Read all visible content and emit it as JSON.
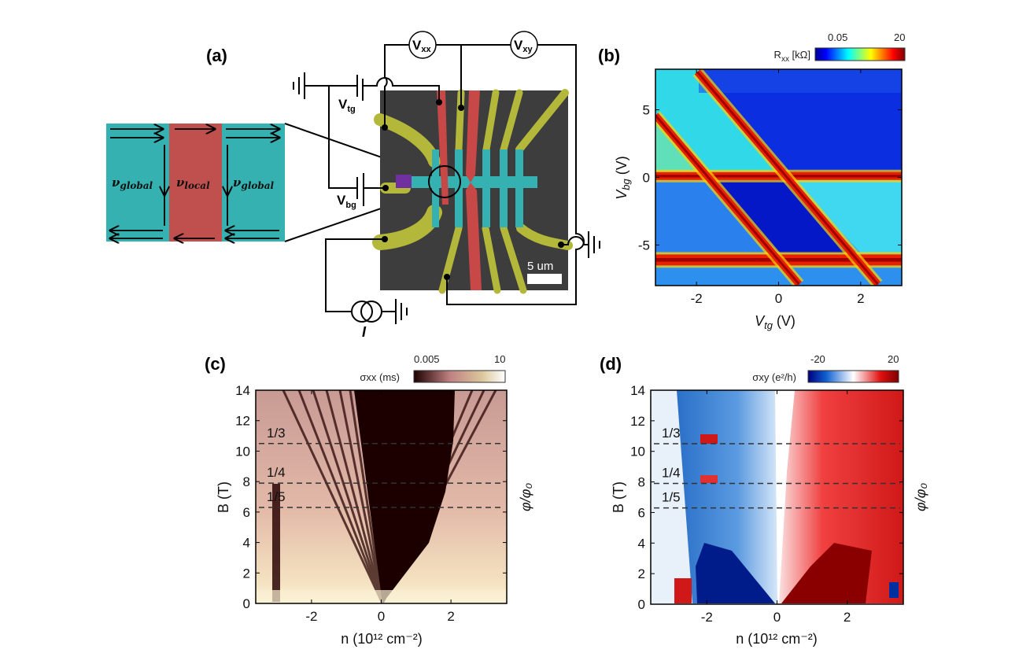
{
  "panel_a": {
    "label": "(a)",
    "edge_states": {
      "left": {
        "symbol": "ν",
        "sub": "global"
      },
      "center": {
        "symbol": "ν",
        "sub": "local"
      },
      "right": {
        "symbol": "ν",
        "sub": "global"
      }
    },
    "meters": [
      {
        "base": "V",
        "sub": "xx"
      },
      {
        "base": "V",
        "sub": "xy"
      }
    ],
    "gates": [
      {
        "base": "V",
        "sub": "tg"
      },
      {
        "base": "V",
        "sub": "bg"
      }
    ],
    "current_label": "I",
    "scale_bar": "5 um",
    "colors": {
      "global_region": "#35b1b1",
      "local_region": "#c0504d",
      "lead": "#b4b83a",
      "substrate": "#3d3d3d",
      "contact": "#7030a0"
    }
  },
  "chart_data": [
    {
      "panel": "(b)",
      "type": "heatmap",
      "xlabel": {
        "var": "V",
        "sub": "tg",
        "unit": " (V)"
      },
      "ylabel": {
        "var": "V",
        "sub": "bg",
        "unit": " (V)"
      },
      "xlim": [
        -3,
        3
      ],
      "ylim": [
        -8,
        8
      ],
      "xticks": [
        -2,
        0,
        2
      ],
      "yticks": [
        5,
        0,
        -5
      ],
      "colorbar": {
        "label_base": "R",
        "label_sub": "xx",
        "label_unit": " [kΩ]",
        "min": "0.05",
        "max": "20",
        "colormap": "jet"
      },
      "peak_lines": [
        {
          "kind": "horizontal",
          "V_bg": 0.1
        },
        {
          "kind": "horizontal",
          "V_bg": -6.1
        },
        {
          "kind": "diagonal",
          "from": [
            -1.98,
            7.8
          ],
          "to": [
            2.42,
            -7.9
          ]
        },
        {
          "kind": "diagonal",
          "from": [
            -3.0,
            4.6
          ],
          "to": [
            0.5,
            -7.9
          ]
        }
      ]
    },
    {
      "panel": "(c)",
      "type": "heatmap",
      "xlabel": "n (10¹² cm⁻²)",
      "ylabel": "B (T)",
      "ylabel_right": "φ/φ₀",
      "xlim": [
        -3.6,
        3.6
      ],
      "ylim": [
        0,
        14
      ],
      "xticks": [
        -2,
        0,
        2
      ],
      "yticks": [
        0,
        2,
        4,
        6,
        8,
        10,
        12,
        14
      ],
      "colorbar": {
        "label": "σxx (ms)",
        "min": "0.005",
        "max": "10",
        "colormap": "pink"
      },
      "annotations": [
        {
          "label": "1/3",
          "B": 10.5
        },
        {
          "label": "1/4",
          "B": 7.9
        },
        {
          "label": "1/5",
          "B": 6.3
        }
      ]
    },
    {
      "panel": "(d)",
      "type": "heatmap",
      "xlabel": "n (10¹² cm⁻²)",
      "ylabel": "B (T)",
      "ylabel_right": "φ/φ₀",
      "xlim": [
        -3.6,
        3.6
      ],
      "ylim": [
        0,
        14
      ],
      "xticks": [
        -2,
        0,
        2
      ],
      "yticks": [
        0,
        2,
        4,
        6,
        8,
        10,
        12,
        14
      ],
      "colorbar": {
        "label": "σxy (e²/h)",
        "min": "-20",
        "max": "20",
        "colormap": "blue-white-red"
      },
      "annotations": [
        {
          "label": "1/3",
          "B": 10.5
        },
        {
          "label": "1/4",
          "B": 7.9
        },
        {
          "label": "1/5",
          "B": 6.3
        }
      ]
    }
  ]
}
